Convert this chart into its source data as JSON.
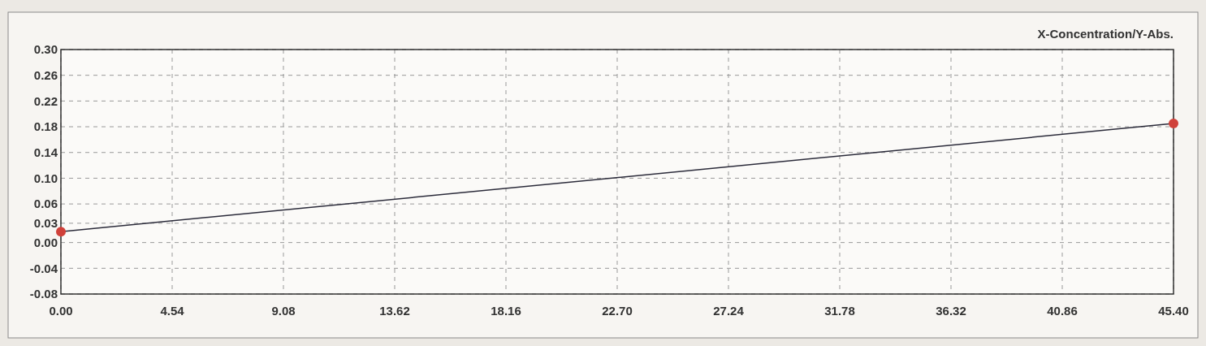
{
  "chart_data": {
    "type": "line",
    "title": "X-Concentration/Y-Abs.",
    "x": [
      0,
      45.4
    ],
    "series": [
      {
        "color": "#2b2b3a",
        "values": [
          0.017,
          0.185
        ]
      },
      {
        "type": "scatter",
        "color": "#d0413a",
        "marker": "circle",
        "values": [
          0.017,
          0.185
        ]
      }
    ],
    "grid": true,
    "line_style": "solid",
    "xlim": [
      0,
      45.4
    ],
    "xticks": [
      {
        "value": 0,
        "label": "0.00"
      },
      {
        "value": 4.54,
        "label": "4.54"
      },
      {
        "value": 9.08,
        "label": "9.08"
      },
      {
        "value": 13.62,
        "label": "13.62"
      },
      {
        "value": 18.16,
        "label": "18.16"
      },
      {
        "value": 22.7,
        "label": "22.70"
      },
      {
        "value": 27.24,
        "label": "27.24"
      },
      {
        "value": 31.78,
        "label": "31.78"
      },
      {
        "value": 36.32,
        "label": "36.32"
      },
      {
        "value": 40.86,
        "label": "40.86"
      },
      {
        "value": 45.4,
        "label": "45.40"
      }
    ],
    "ylim": [
      -0.08,
      0.3
    ],
    "yticks": [
      {
        "value": -0.08,
        "label": "-0.08"
      },
      {
        "value": -0.04,
        "label": "-0.04"
      },
      {
        "value": 0,
        "label": "0.00"
      },
      {
        "value": 0.03,
        "label": "0.03"
      },
      {
        "value": 0.06,
        "label": "0.06"
      },
      {
        "value": 0.1,
        "label": "0.10"
      },
      {
        "value": 0.14,
        "label": "0.14"
      },
      {
        "value": 0.18,
        "label": "0.18"
      },
      {
        "value": 0.22,
        "label": "0.22"
      },
      {
        "value": 0.26,
        "label": "0.26"
      },
      {
        "value": 0.3,
        "label": "0.30"
      }
    ]
  }
}
